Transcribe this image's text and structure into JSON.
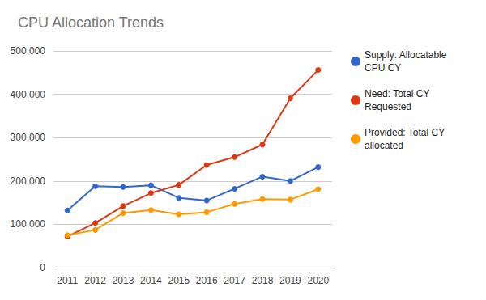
{
  "chart_data": {
    "type": "line",
    "title": "CPU Allocation Trends",
    "categories": [
      "2011",
      "2012",
      "2013",
      "2014",
      "2015",
      "2016",
      "2017",
      "2018",
      "2019",
      "2020"
    ],
    "series": [
      {
        "name": "Supply: Allocatable CPU CY",
        "color": "#3366cc",
        "marker": "circle",
        "values": [
          132000,
          188000,
          186000,
          190000,
          161000,
          155000,
          182000,
          210000,
          200000,
          232000
        ]
      },
      {
        "name": "Need: Total CY Requested",
        "color": "#dc3912",
        "marker": "circle",
        "values": [
          72000,
          103000,
          142000,
          172000,
          191000,
          237000,
          255000,
          284000,
          391000,
          456000
        ]
      },
      {
        "name": "Provided: Total CY allocated",
        "color": "#ff9900",
        "marker": "circle",
        "values": [
          75000,
          87000,
          126000,
          133000,
          123000,
          128000,
          147000,
          158000,
          157000,
          181000
        ]
      }
    ],
    "ylim": [
      0,
      500000
    ],
    "yticks": [
      0,
      {
        "value": 100000,
        "label": "100,000"
      },
      {
        "value": 200000,
        "label": "200,000"
      },
      {
        "value": 300000,
        "label": "300,000"
      },
      {
        "value": 400000,
        "label": "400,000"
      },
      {
        "value": 500000,
        "label": "500,000"
      }
    ],
    "grid": true,
    "legend": "right"
  }
}
